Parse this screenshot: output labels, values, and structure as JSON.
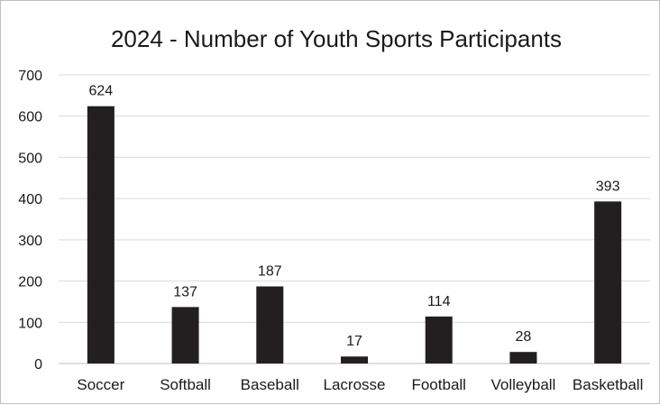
{
  "chart_data": {
    "type": "bar",
    "title": "2024 - Number of Youth Sports Participants",
    "xlabel": "",
    "ylabel": "",
    "categories": [
      "Soccer",
      "Softball",
      "Baseball",
      "Lacrosse",
      "Football",
      "Volleyball",
      "Basketball"
    ],
    "values": [
      624,
      137,
      187,
      17,
      114,
      28,
      393
    ],
    "data_labels": [
      "624",
      "137",
      "187",
      "17",
      "114",
      "28",
      "393"
    ],
    "ylim": [
      0,
      700
    ],
    "yticks": [
      "0",
      "100",
      "200",
      "300",
      "400",
      "500",
      "600",
      "700"
    ],
    "grid": true,
    "legend": "none",
    "bar_color": "#231f20"
  }
}
